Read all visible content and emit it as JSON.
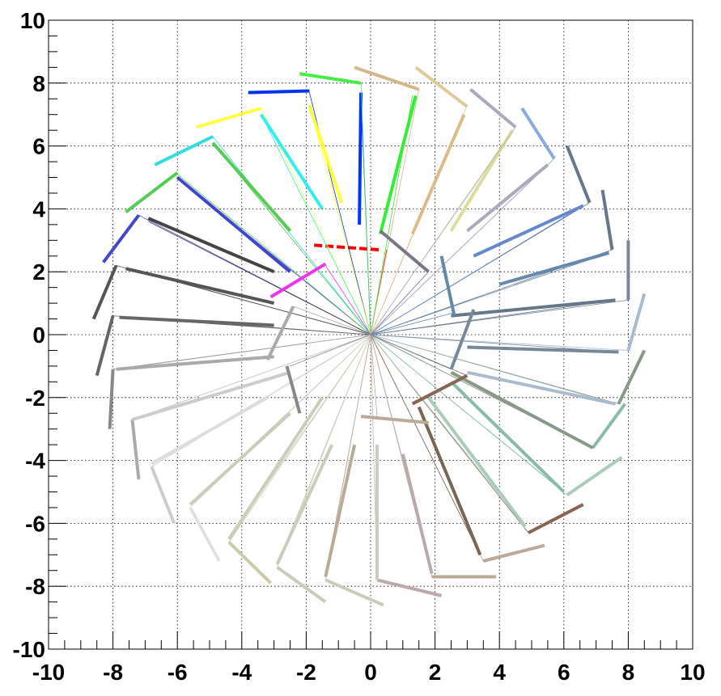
{
  "chart_data": {
    "type": "line",
    "title": "",
    "xlabel": "",
    "ylabel": "",
    "xlim": [
      -10,
      10
    ],
    "ylim": [
      -10,
      10
    ],
    "grid": true,
    "legend": "none",
    "x_ticks": [
      -10,
      -8,
      -6,
      -4,
      -2,
      0,
      2,
      4,
      6,
      8,
      10
    ],
    "y_ticks": [
      -10,
      -8,
      -6,
      -4,
      -2,
      0,
      2,
      4,
      6,
      8,
      10
    ],
    "x_tick_labels": [
      "-10",
      "-8",
      "-6",
      "-4",
      "-2",
      "0",
      "2",
      "4",
      "6",
      "8",
      "10"
    ],
    "y_tick_labels": [
      "-10",
      "-8",
      "-6",
      "-4",
      "-2",
      "0",
      "2",
      "4",
      "6",
      "8",
      "10"
    ],
    "origin": [
      0,
      0
    ],
    "spokes": [
      {
        "r": 8.6,
        "tip": [
          0.5,
          2.7
        ],
        "bar": [
          [
            0.25,
            2.7
          ],
          [
            -1.8,
            2.85
          ]
        ],
        "color": "#ff0000",
        "dashed": true
      },
      {
        "r": 7.7,
        "tip": [
          -0.3,
          7.7
        ],
        "bar": [
          [
            -0.3,
            7.7
          ],
          [
            -0.35,
            3.5
          ]
        ],
        "color": "#0033ff"
      },
      {
        "r": 8.0,
        "tip": [
          1.3,
          7.6
        ],
        "bar": [
          [
            1.4,
            7.6
          ],
          [
            0.3,
            3.2
          ]
        ],
        "color": "#33ee33"
      },
      {
        "r": 8.3,
        "tip": [
          -0.3,
          8.0
        ],
        "bar": [
          [
            -0.3,
            8.0
          ],
          [
            -2.2,
            8.3
          ]
        ],
        "color": "#44ee44"
      },
      {
        "r": 7.7,
        "tip": [
          -1.9,
          7.7
        ],
        "bar": [
          [
            -1.9,
            7.75
          ],
          [
            -3.8,
            7.7
          ]
        ],
        "color": "#0033ee"
      },
      {
        "r": 7.4,
        "tip": [
          -1.9,
          7.3
        ],
        "bar": [
          [
            -1.9,
            7.3
          ],
          [
            -0.9,
            4.2
          ]
        ],
        "color": "#ffff33"
      },
      {
        "r": 8.7,
        "tip": [
          1.5,
          7.8
        ],
        "bar": [
          [
            1.5,
            7.8
          ],
          [
            -0.5,
            8.5
          ]
        ],
        "color": "#d4b88a"
      },
      {
        "r": 8.6,
        "tip": [
          3.0,
          7.3
        ],
        "bar": [
          [
            3.0,
            7.25
          ],
          [
            1.4,
            8.5
          ]
        ],
        "color": "#ddcc99"
      },
      {
        "r": 7.2,
        "tip": [
          2.9,
          7.0
        ],
        "bar": [
          [
            2.9,
            7.0
          ],
          [
            1.3,
            3.2
          ]
        ],
        "color": "#ddbb88"
      },
      {
        "r": 7.3,
        "tip": [
          -3.4,
          7.2
        ],
        "bar": [
          [
            -3.4,
            7.2
          ],
          [
            -5.4,
            6.6
          ]
        ],
        "color": "#ffff44"
      },
      {
        "r": 7.3,
        "tip": [
          -3.4,
          7.0
        ],
        "bar": [
          [
            -3.4,
            7.0
          ],
          [
            -1.5,
            4.0
          ]
        ],
        "color": "#33eeee"
      },
      {
        "r": 7.5,
        "tip": [
          4.4,
          6.5
        ],
        "bar": [
          [
            4.4,
            6.5
          ],
          [
            2.5,
            3.3
          ]
        ],
        "color": "#dddd99"
      },
      {
        "r": 8.0,
        "tip": [
          4.5,
          6.6
        ],
        "bar": [
          [
            4.5,
            6.6
          ],
          [
            3.1,
            7.8
          ]
        ],
        "color": "#aaaabb"
      },
      {
        "r": 7.0,
        "tip": [
          -4.9,
          6.3
        ],
        "bar": [
          [
            -4.9,
            6.3
          ],
          [
            -6.7,
            5.4
          ]
        ],
        "color": "#33dddd"
      },
      {
        "r": 7.0,
        "tip": [
          -4.9,
          6.1
        ],
        "bar": [
          [
            -4.9,
            6.1
          ],
          [
            -2.5,
            3.3
          ]
        ],
        "color": "#55cc55"
      },
      {
        "r": 8.2,
        "tip": [
          5.7,
          5.6
        ],
        "bar": [
          [
            5.7,
            5.6
          ],
          [
            4.7,
            7.2
          ]
        ],
        "color": "#88aadd"
      },
      {
        "r": 8.0,
        "tip": [
          5.5,
          5.4
        ],
        "bar": [
          [
            5.5,
            5.4
          ],
          [
            3.0,
            3.3
          ]
        ],
        "color": "#aaaabb"
      },
      {
        "r": 7.2,
        "tip": [
          -6.0,
          5.0
        ],
        "bar": [
          [
            -6.0,
            5.0
          ],
          [
            -2.5,
            2.0
          ]
        ],
        "color": "#4444cc"
      },
      {
        "r": 7.0,
        "tip": [
          -6.0,
          5.1
        ],
        "bar": [
          [
            -6.0,
            5.15
          ],
          [
            -7.6,
            3.9
          ]
        ],
        "color": "#55cc55"
      },
      {
        "r": 8.0,
        "tip": [
          6.8,
          4.2
        ],
        "bar": [
          [
            6.8,
            4.2
          ],
          [
            6.1,
            6.0
          ]
        ],
        "color": "#667788"
      },
      {
        "r": 7.6,
        "tip": [
          6.6,
          4.1
        ],
        "bar": [
          [
            6.6,
            4.1
          ],
          [
            3.2,
            2.5
          ]
        ],
        "color": "#6688cc"
      },
      {
        "r": 7.6,
        "tip": [
          -7.2,
          3.8
        ],
        "bar": [
          [
            -7.2,
            3.8
          ],
          [
            -8.3,
            2.3
          ]
        ],
        "color": "#4444cc"
      },
      {
        "r": 7.0,
        "tip": [
          -6.9,
          3.6
        ],
        "bar": [
          [
            -6.9,
            3.7
          ],
          [
            -3.0,
            2.0
          ]
        ],
        "color": "#444444"
      },
      {
        "r": 8.4,
        "tip": [
          7.5,
          2.7
        ],
        "bar": [
          [
            7.5,
            2.7
          ],
          [
            7.2,
            4.6
          ]
        ],
        "color": "#667788"
      },
      {
        "r": 7.9,
        "tip": [
          7.4,
          2.6
        ],
        "bar": [
          [
            7.4,
            2.6
          ],
          [
            4.0,
            1.6
          ]
        ],
        "color": "#6688aa"
      },
      {
        "r": 8.0,
        "tip": [
          -7.9,
          2.2
        ],
        "bar": [
          [
            -7.9,
            2.2
          ],
          [
            -8.6,
            0.5
          ]
        ],
        "color": "#555555"
      },
      {
        "r": 7.6,
        "tip": [
          -7.5,
          2.1
        ],
        "bar": [
          [
            -7.6,
            2.1
          ],
          [
            -3.0,
            1.0
          ]
        ],
        "color": "#555555"
      },
      {
        "r": 8.0,
        "tip": [
          8.0,
          1.1
        ],
        "bar": [
          [
            8.0,
            1.1
          ],
          [
            8.0,
            3.0
          ]
        ],
        "color": "#778899"
      },
      {
        "r": 7.7,
        "tip": [
          7.6,
          1.1
        ],
        "bar": [
          [
            7.6,
            1.1
          ],
          [
            2.5,
            0.6
          ]
        ],
        "color": "#667788"
      },
      {
        "r": 8.0,
        "tip": [
          -8.0,
          0.6
        ],
        "bar": [
          [
            -8.0,
            0.6
          ],
          [
            -8.5,
            -1.3
          ]
        ],
        "color": "#666666"
      },
      {
        "r": 8.0,
        "tip": [
          -7.8,
          0.55
        ],
        "bar": [
          [
            -7.8,
            0.55
          ],
          [
            -3.0,
            0.3
          ]
        ],
        "color": "#666666"
      },
      {
        "r": 8.5,
        "tip": [
          8.0,
          -0.5
        ],
        "bar": [
          [
            8.0,
            -0.5
          ],
          [
            8.5,
            1.3
          ]
        ],
        "color": "#aabbcc"
      },
      {
        "r": 7.7,
        "tip": [
          7.7,
          -0.55
        ],
        "bar": [
          [
            7.7,
            -0.55
          ],
          [
            3.0,
            -0.4
          ]
        ],
        "color": "#778899"
      },
      {
        "r": 8.1,
        "tip": [
          -8.0,
          -1.1
        ],
        "bar": [
          [
            -8.0,
            -1.1
          ],
          [
            -8.1,
            -3.0
          ]
        ],
        "color": "#888888"
      },
      {
        "r": 8.0,
        "tip": [
          -7.9,
          -1.1
        ],
        "bar": [
          [
            -7.9,
            -1.1
          ],
          [
            -3.0,
            -0.7
          ]
        ],
        "color": "#aaaaaa"
      },
      {
        "r": 8.3,
        "tip": [
          7.7,
          -2.2
        ],
        "bar": [
          [
            7.7,
            -2.2
          ],
          [
            8.5,
            -0.5
          ]
        ],
        "color": "#889988"
      },
      {
        "r": 8.0,
        "tip": [
          7.6,
          -2.2
        ],
        "bar": [
          [
            7.6,
            -2.2
          ],
          [
            3.0,
            -1.2
          ]
        ],
        "color": "#aabbcc"
      },
      {
        "r": 7.6,
        "tip": [
          -7.4,
          -2.7
        ],
        "bar": [
          [
            -7.4,
            -2.7
          ],
          [
            -7.2,
            -4.6
          ]
        ],
        "color": "#aaaaaa"
      },
      {
        "r": 7.4,
        "tip": [
          -7.4,
          -2.7
        ],
        "bar": [
          [
            -7.4,
            -2.7
          ],
          [
            -2.5,
            -1.2
          ]
        ],
        "color": "#cccccc"
      },
      {
        "r": 7.6,
        "tip": [
          6.9,
          -3.6
        ],
        "bar": [
          [
            6.9,
            -3.6
          ],
          [
            7.9,
            -2.2
          ]
        ],
        "color": "#88bbaa"
      },
      {
        "r": 7.8,
        "tip": [
          6.9,
          -3.6
        ],
        "bar": [
          [
            6.9,
            -3.6
          ],
          [
            2.5,
            -1.2
          ]
        ],
        "color": "#889988"
      },
      {
        "r": 7.3,
        "tip": [
          -6.8,
          -4.2
        ],
        "bar": [
          [
            -6.8,
            -4.2
          ],
          [
            -6.1,
            -6.0
          ]
        ],
        "color": "#cccccc"
      },
      {
        "r": 7.0,
        "tip": [
          -6.8,
          -4.1
        ],
        "bar": [
          [
            -6.8,
            -4.1
          ],
          [
            -3.2,
            -2.0
          ]
        ],
        "color": "#dddddd"
      },
      {
        "r": 7.3,
        "tip": [
          6.1,
          -5.1
        ],
        "bar": [
          [
            6.1,
            -5.1
          ],
          [
            7.8,
            -3.9
          ]
        ],
        "color": "#aaccbb"
      },
      {
        "r": 7.0,
        "tip": [
          6.0,
          -5.0
        ],
        "bar": [
          [
            6.0,
            -5.0
          ],
          [
            2.5,
            -1.5
          ]
        ],
        "color": "#88bbaa"
      },
      {
        "r": 7.4,
        "tip": [
          -5.6,
          -5.5
        ],
        "bar": [
          [
            -5.6,
            -5.5
          ],
          [
            -4.7,
            -7.2
          ]
        ],
        "color": "#e0e0e0"
      },
      {
        "r": 7.4,
        "tip": [
          -5.6,
          -5.4
        ],
        "bar": [
          [
            -5.6,
            -5.4
          ],
          [
            -2.5,
            -2.5
          ]
        ],
        "color": "#ccccbb"
      },
      {
        "r": 8.0,
        "tip": [
          4.9,
          -6.3
        ],
        "bar": [
          [
            4.9,
            -6.3
          ],
          [
            6.6,
            -5.4
          ]
        ],
        "color": "#886655"
      },
      {
        "r": 8.0,
        "tip": [
          4.8,
          -6.1
        ],
        "bar": [
          [
            4.8,
            -6.1
          ],
          [
            1.8,
            -2.0
          ]
        ],
        "color": "#aaccbb"
      },
      {
        "r": 7.6,
        "tip": [
          -4.4,
          -6.6
        ],
        "bar": [
          [
            -4.4,
            -6.6
          ],
          [
            -3.1,
            -7.9
          ]
        ],
        "color": "#ccccaa"
      },
      {
        "r": 7.4,
        "tip": [
          -4.4,
          -6.5
        ],
        "bar": [
          [
            -4.4,
            -6.5
          ],
          [
            -1.5,
            -2.0
          ]
        ],
        "color": "#ccccbb"
      },
      {
        "r": 7.7,
        "tip": [
          3.5,
          -7.2
        ],
        "bar": [
          [
            3.5,
            -7.2
          ],
          [
            5.4,
            -6.7
          ]
        ],
        "color": "#bbaa99"
      },
      {
        "r": 7.6,
        "tip": [
          3.4,
          -7.0
        ],
        "bar": [
          [
            3.4,
            -7.0
          ],
          [
            1.5,
            -2.3
          ]
        ],
        "color": "#776655"
      },
      {
        "r": 8.2,
        "tip": [
          -2.9,
          -7.4
        ],
        "bar": [
          [
            -2.9,
            -7.4
          ],
          [
            -1.4,
            -8.5
          ]
        ],
        "color": "#ccccbb"
      },
      {
        "r": 7.6,
        "tip": [
          -2.9,
          -7.3
        ],
        "bar": [
          [
            -2.9,
            -7.3
          ],
          [
            -1.2,
            -3.5
          ]
        ],
        "color": "#ccccbb"
      },
      {
        "r": 7.8,
        "tip": [
          1.9,
          -7.7
        ],
        "bar": [
          [
            1.9,
            -7.7
          ],
          [
            3.9,
            -7.7
          ]
        ],
        "color": "#bbaa99"
      },
      {
        "r": 7.8,
        "tip": [
          1.9,
          -7.6
        ],
        "bar": [
          [
            1.9,
            -7.6
          ],
          [
            1.0,
            -3.8
          ]
        ],
        "color": "#bbaaaa"
      },
      {
        "r": 8.0,
        "tip": [
          -1.4,
          -7.8
        ],
        "bar": [
          [
            -1.4,
            -7.8
          ],
          [
            0.4,
            -8.6
          ]
        ],
        "color": "#ccccbb"
      },
      {
        "r": 7.8,
        "tip": [
          -1.4,
          -7.7
        ],
        "bar": [
          [
            -1.4,
            -7.7
          ],
          [
            -0.5,
            -3.5
          ]
        ],
        "color": "#bbaa99"
      },
      {
        "r": 7.8,
        "tip": [
          0.2,
          -7.8
        ],
        "bar": [
          [
            0.2,
            -7.8
          ],
          [
            2.2,
            -8.3
          ]
        ],
        "color": "#bbaaaa"
      },
      {
        "r": 7.8,
        "tip": [
          0.2,
          -7.8
        ],
        "bar": [
          [
            0.2,
            -7.8
          ],
          [
            0.2,
            -3.5
          ]
        ],
        "color": "#ccccbb"
      },
      {
        "r": 3.0,
        "tip": [
          0.2,
          -2.6
        ],
        "bar": [
          [
            -0.3,
            -2.6
          ],
          [
            1.8,
            -2.8
          ]
        ],
        "color": "#bbaa99"
      },
      {
        "r": 3.5,
        "tip": [
          3.0,
          -1.3
        ],
        "bar": [
          [
            3.0,
            -1.3
          ],
          [
            1.3,
            -2.2
          ]
        ],
        "color": "#886655"
      },
      {
        "r": 3.0,
        "tip": [
          2.5,
          -1.1
        ],
        "bar": [
          [
            2.5,
            -1.1
          ],
          [
            3.2,
            0.8
          ]
        ],
        "color": "#778899"
      },
      {
        "r": 2.9,
        "tip": [
          2.6,
          0.7
        ],
        "bar": [
          [
            2.6,
            0.6
          ],
          [
            2.2,
            2.5
          ]
        ],
        "color": "#6688aa"
      },
      {
        "r": 3.3,
        "tip": [
          1.8,
          2.0
        ],
        "bar": [
          [
            1.8,
            2.0
          ],
          [
            0.3,
            3.3
          ]
        ],
        "color": "#777788"
      },
      {
        "r": 2.3,
        "tip": [
          -1.4,
          2.2
        ],
        "bar": [
          [
            -1.4,
            2.25
          ],
          [
            -3.1,
            1.2
          ]
        ],
        "color": "#ee33ee"
      },
      {
        "r": 2.0,
        "tip": [
          -2.4,
          0.9
        ],
        "bar": [
          [
            -2.4,
            0.9
          ],
          [
            -3.2,
            -0.8
          ]
        ],
        "color": "#aaaaaa"
      },
      {
        "r": 2.4,
        "tip": [
          -2.5,
          -1.0
        ],
        "bar": [
          [
            -2.6,
            -1.0
          ],
          [
            -2.2,
            -2.5
          ]
        ],
        "color": "#888888"
      }
    ]
  }
}
